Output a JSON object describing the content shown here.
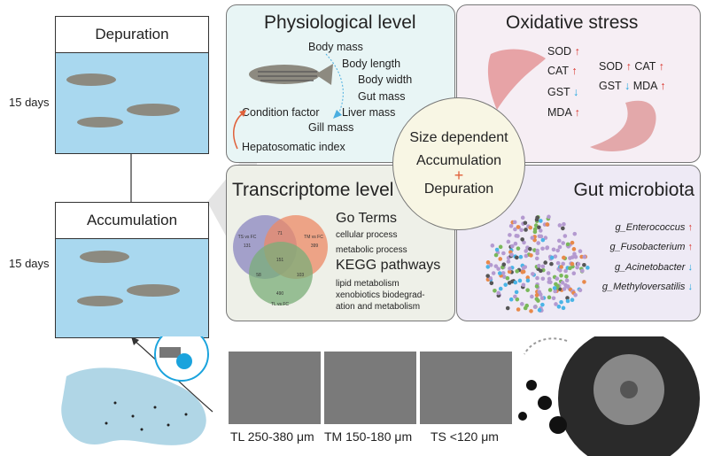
{
  "tanks": {
    "depuration": {
      "label": "Depuration",
      "duration": "15 days"
    },
    "accumulation": {
      "label": "Accumulation",
      "duration": "15 days"
    }
  },
  "physiological": {
    "title": "Physiological level",
    "items": [
      "Body mass",
      "Body length",
      "Body width",
      "Gut mass",
      "Liver mass",
      "Gill mass"
    ],
    "condition_factor": "Condition factor",
    "hepatosomatic": "Hepatosomatic index"
  },
  "oxidative": {
    "title": "Oxidative stress",
    "liver": [
      {
        "name": "SOD",
        "trend": "up"
      },
      {
        "name": "CAT",
        "trend": "up"
      },
      {
        "name": "GST",
        "trend": "down"
      },
      {
        "name": "MDA",
        "trend": "up"
      }
    ],
    "gut": [
      {
        "name": "SOD",
        "trend": "up"
      },
      {
        "name": "CAT",
        "trend": "up"
      },
      {
        "name": "GST",
        "trend": "down"
      },
      {
        "name": "MDA",
        "trend": "up"
      }
    ]
  },
  "center": {
    "line1": "Size dependent",
    "line2": "Accumulation",
    "plus": "+",
    "line3": "Depuration"
  },
  "transcriptome": {
    "title": "Transcriptome level",
    "venn": {
      "set_a": "TS vs FC",
      "set_b": "TM vs FC",
      "set_c": "TL vs FC",
      "a_only": "131",
      "b_only": "399",
      "c_only": "490",
      "ab": "71",
      "ac": "58",
      "bc": "103",
      "abc": "151"
    },
    "go_title": "Go Terms",
    "go_items": [
      "cellular process",
      "metabolic process"
    ],
    "kegg_title": "KEGG pathways",
    "kegg_items": [
      "lipid metabolism",
      "xenobiotics biodegrad-",
      "ation and metabolism"
    ]
  },
  "gut": {
    "title": "Gut microbiota",
    "genera": [
      {
        "name": "g_Enterococcus",
        "trend": "up"
      },
      {
        "name": "g_Fusobacterium",
        "trend": "up"
      },
      {
        "name": "g_Acinetobacter",
        "trend": "down"
      },
      {
        "name": "g_Methyloversatilis",
        "trend": "down"
      }
    ]
  },
  "particles": [
    {
      "label": "TL 250-380 μm"
    },
    {
      "label": "TM 150-180 μm"
    },
    {
      "label": "TS <120 μm"
    }
  ],
  "colors": {
    "up": "#d9342b",
    "down": "#1aa3dd",
    "water": "#a9d8ef",
    "physio_bg": "#e8f5f5",
    "oxid_bg": "#f6eef4",
    "trans_bg": "#eef0e8",
    "gut_bg": "#eeeaf5",
    "center_bg": "#f8f6e4"
  }
}
